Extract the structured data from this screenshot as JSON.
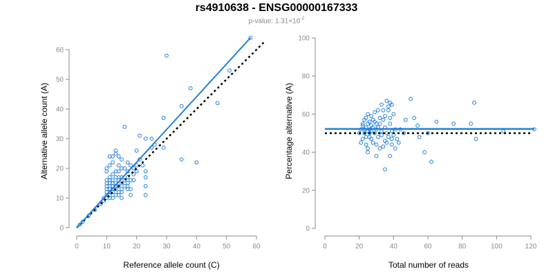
{
  "title": "rs4910638 - ENSG00000167333",
  "subtitle": {
    "prefix": "p-value: 1.31×10",
    "exponent": "-2"
  },
  "colors": {
    "points": "#1f7fd8",
    "fit": "#1f7fd8",
    "reference": "#000000",
    "axis": "#888888"
  },
  "chart_data": [
    {
      "type": "scatter",
      "xlabel": "Reference allele count (C)",
      "ylabel": "Alternative allele count (A)",
      "xlim": [
        0,
        60
      ],
      "ylim": [
        0,
        60
      ],
      "xticks": [
        "0",
        "10",
        "20",
        "30",
        "40",
        "50",
        "60"
      ],
      "yticks": [
        "0",
        "10",
        "20",
        "30",
        "40",
        "50",
        "60"
      ],
      "fit_line": {
        "x": [
          0,
          58
        ],
        "y": [
          0,
          64
        ]
      },
      "reference_line": {
        "x": [
          0,
          63
        ],
        "y": [
          0,
          63
        ]
      },
      "points": [
        [
          1,
          1
        ],
        [
          2,
          2
        ],
        [
          4,
          4
        ],
        [
          6,
          6
        ],
        [
          8,
          8
        ],
        [
          9,
          9
        ],
        [
          9,
          10
        ],
        [
          10,
          10
        ],
        [
          10,
          11
        ],
        [
          10,
          12
        ],
        [
          10,
          13
        ],
        [
          10,
          14
        ],
        [
          10,
          15
        ],
        [
          10,
          16
        ],
        [
          10,
          19
        ],
        [
          10,
          20
        ],
        [
          11,
          10
        ],
        [
          11,
          11
        ],
        [
          11,
          12
        ],
        [
          11,
          13
        ],
        [
          11,
          14
        ],
        [
          11,
          15
        ],
        [
          11,
          16
        ],
        [
          11,
          17
        ],
        [
          11,
          21
        ],
        [
          11,
          24
        ],
        [
          12,
          10
        ],
        [
          12,
          12
        ],
        [
          12,
          13
        ],
        [
          12,
          14
        ],
        [
          12,
          15
        ],
        [
          12,
          16
        ],
        [
          12,
          18
        ],
        [
          12,
          22
        ],
        [
          12,
          24
        ],
        [
          13,
          11
        ],
        [
          13,
          13
        ],
        [
          13,
          14
        ],
        [
          13,
          15
        ],
        [
          13,
          17
        ],
        [
          13,
          19
        ],
        [
          13,
          25
        ],
        [
          13,
          26
        ],
        [
          14,
          11
        ],
        [
          14,
          12
        ],
        [
          14,
          14
        ],
        [
          14,
          16
        ],
        [
          14,
          17
        ],
        [
          14,
          19
        ],
        [
          14,
          21
        ],
        [
          14,
          24
        ],
        [
          15,
          10
        ],
        [
          15,
          12
        ],
        [
          15,
          13
        ],
        [
          15,
          15
        ],
        [
          15,
          17
        ],
        [
          15,
          20
        ],
        [
          15,
          23
        ],
        [
          16,
          14
        ],
        [
          16,
          16
        ],
        [
          16,
          20
        ],
        [
          16,
          34
        ],
        [
          17,
          13
        ],
        [
          17,
          14
        ],
        [
          17,
          15
        ],
        [
          17,
          17
        ],
        [
          17,
          19
        ],
        [
          17,
          22
        ],
        [
          18,
          11
        ],
        [
          18,
          13
        ],
        [
          18,
          16
        ],
        [
          18,
          21
        ],
        [
          19,
          16
        ],
        [
          19,
          18
        ],
        [
          19,
          20
        ],
        [
          20,
          19
        ],
        [
          20,
          21
        ],
        [
          20,
          26
        ],
        [
          21,
          23
        ],
        [
          21,
          31
        ],
        [
          22,
          21
        ],
        [
          23,
          11
        ],
        [
          23,
          14
        ],
        [
          23,
          17
        ],
        [
          23,
          19
        ],
        [
          23,
          30
        ],
        [
          25,
          27
        ],
        [
          25,
          30
        ],
        [
          26,
          28
        ],
        [
          29,
          27
        ],
        [
          29,
          37
        ],
        [
          30,
          58
        ],
        [
          35,
          41
        ],
        [
          35,
          23
        ],
        [
          38,
          47
        ],
        [
          40,
          22
        ],
        [
          47,
          42
        ],
        [
          51,
          53
        ],
        [
          58,
          64
        ]
      ]
    },
    {
      "type": "scatter",
      "xlabel": "Total number of reads",
      "ylabel": "Percentage alternative (A)",
      "xlim": [
        0,
        120
      ],
      "ylim": [
        0,
        100
      ],
      "xticks": [
        "0",
        "20",
        "40",
        "60",
        "80",
        "100",
        "120"
      ],
      "yticks": [
        "0",
        "20",
        "40",
        "60",
        "80",
        "100"
      ],
      "fit_line": {
        "y": 52.2
      },
      "reference_line": {
        "y": 50
      },
      "points": [
        [
          20,
          50
        ],
        [
          21,
          52
        ],
        [
          21,
          45
        ],
        [
          22,
          47
        ],
        [
          22,
          54
        ],
        [
          22,
          55
        ],
        [
          23,
          52
        ],
        [
          23,
          50
        ],
        [
          23,
          57
        ],
        [
          24,
          48
        ],
        [
          24,
          53
        ],
        [
          24,
          44
        ],
        [
          24,
          58
        ],
        [
          25,
          51
        ],
        [
          25,
          55
        ],
        [
          25,
          60
        ],
        [
          25,
          42
        ],
        [
          25,
          40
        ],
        [
          26,
          48
        ],
        [
          26,
          52
        ],
        [
          26,
          56
        ],
        [
          26,
          50
        ],
        [
          27,
          54
        ],
        [
          27,
          51
        ],
        [
          27,
          47
        ],
        [
          27,
          59
        ],
        [
          28,
          45
        ],
        [
          28,
          53
        ],
        [
          28,
          57
        ],
        [
          29,
          50
        ],
        [
          29,
          56
        ],
        [
          29,
          61
        ],
        [
          30,
          44
        ],
        [
          30,
          52
        ],
        [
          30,
          38
        ],
        [
          30,
          55
        ],
        [
          31,
          53
        ],
        [
          31,
          48
        ],
        [
          31,
          62
        ],
        [
          32,
          42
        ],
        [
          32,
          55
        ],
        [
          32,
          58
        ],
        [
          33,
          49
        ],
        [
          33,
          65
        ],
        [
          33,
          51
        ],
        [
          34,
          43
        ],
        [
          34,
          57
        ],
        [
          34,
          62
        ],
        [
          35,
          31
        ],
        [
          35,
          46
        ],
        [
          35,
          53
        ],
        [
          35,
          59
        ],
        [
          36,
          45
        ],
        [
          36,
          50
        ],
        [
          36,
          67
        ],
        [
          37,
          48
        ],
        [
          37,
          62
        ],
        [
          37,
          64
        ],
        [
          38,
          55
        ],
        [
          38,
          38
        ],
        [
          38,
          58
        ],
        [
          38,
          66
        ],
        [
          39,
          47
        ],
        [
          39,
          44
        ],
        [
          39,
          65
        ],
        [
          39,
          51
        ],
        [
          40,
          60
        ],
        [
          40,
          49
        ],
        [
          41,
          42
        ],
        [
          41,
          52
        ],
        [
          42,
          47
        ],
        [
          43,
          45
        ],
        [
          44,
          52
        ],
        [
          46,
          50
        ],
        [
          47,
          57
        ],
        [
          50,
          68
        ],
        [
          52,
          58
        ],
        [
          54,
          54
        ],
        [
          55,
          48
        ],
        [
          58,
          40
        ],
        [
          60,
          50
        ],
        [
          62,
          35
        ],
        [
          65,
          56
        ],
        [
          75,
          55
        ],
        [
          85,
          55
        ],
        [
          87,
          66
        ],
        [
          88,
          47
        ],
        [
          104,
          51
        ],
        [
          122,
          52
        ]
      ]
    }
  ]
}
